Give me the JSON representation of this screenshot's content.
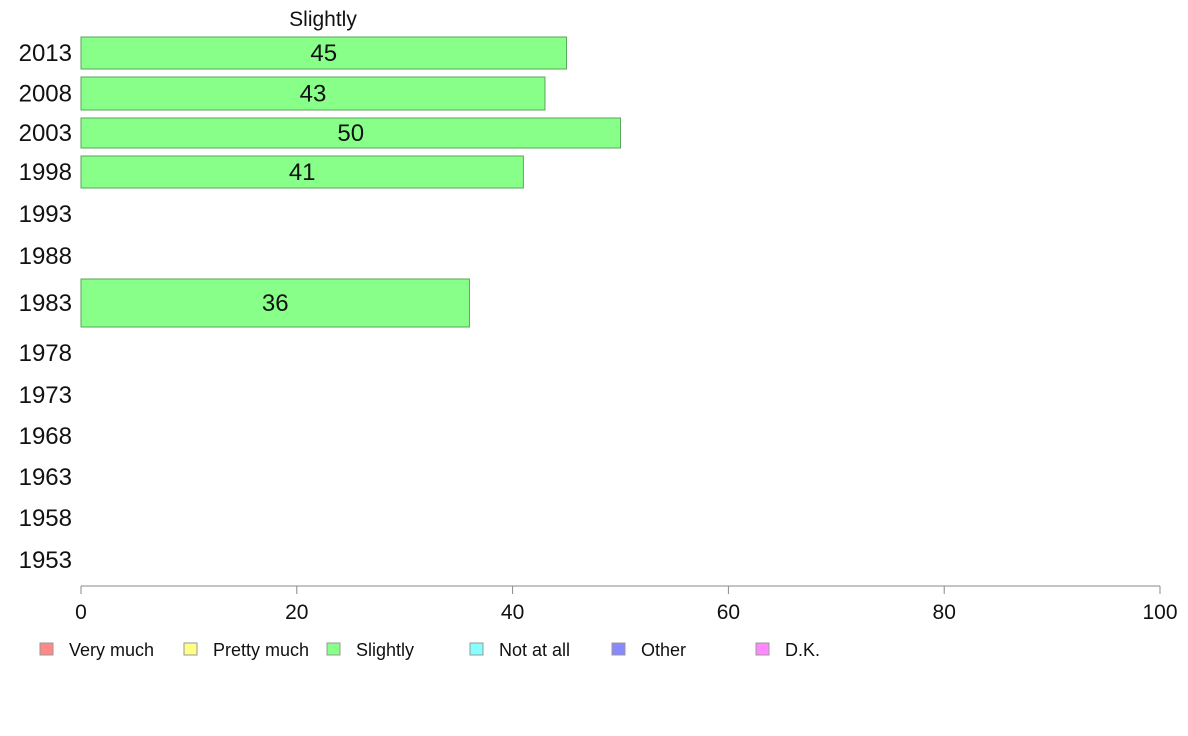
{
  "chart_data": {
    "type": "bar",
    "orientation": "horizontal",
    "title": "Slightly",
    "categories": [
      "2013",
      "2008",
      "2003",
      "1998",
      "1993",
      "1988",
      "1983",
      "1978",
      "1973",
      "1968",
      "1963",
      "1958",
      "1953"
    ],
    "series": [
      {
        "name": "Slightly",
        "color": "#88ff88",
        "values": [
          45,
          43,
          50,
          41,
          null,
          null,
          36,
          null,
          null,
          null,
          null,
          null,
          null
        ],
        "labels": [
          "45",
          "43",
          "50",
          "41",
          "",
          "",
          "36",
          "",
          "",
          "",
          "",
          "",
          ""
        ]
      }
    ],
    "xlim": [
      0,
      100
    ],
    "xticks": [
      "0",
      "20",
      "40",
      "60",
      "80",
      "100"
    ],
    "grid": false,
    "legend_position": "bottom",
    "legend": [
      {
        "label": "Very much",
        "color": "#ff8888"
      },
      {
        "label": "Pretty much",
        "color": "#ffff88"
      },
      {
        "label": "Slightly",
        "color": "#88ff88"
      },
      {
        "label": "Not at all",
        "color": "#88ffff"
      },
      {
        "label": "Other",
        "color": "#8888ff"
      },
      {
        "label": "D.K.",
        "color": "#ff88ff"
      }
    ]
  }
}
